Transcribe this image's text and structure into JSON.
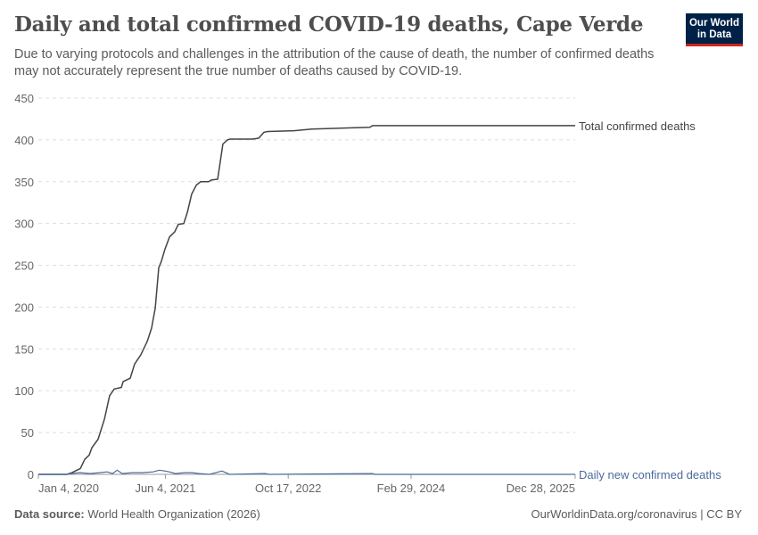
{
  "header": {
    "title": "Daily and total confirmed COVID-19 deaths, Cape Verde",
    "subtitle": "Due to varying protocols and challenges in the attribution of the cause of death, the number of confirmed deaths may not accurately represent the true number of deaths caused by COVID-19.",
    "logo": "Our World in Data",
    "logo_line1": "Our World",
    "logo_line2": "in Data"
  },
  "footer": {
    "source_label": "Data source:",
    "source": "World Health Organization (2026)",
    "link": "OurWorldinData.org/coronavirus | CC BY"
  },
  "chart_data": {
    "type": "line",
    "title": "Daily and total confirmed COVID-19 deaths, Cape Verde",
    "xlim": [
      "2020-01-04",
      "2025-12-28"
    ],
    "ylim": [
      0,
      450
    ],
    "yticks": [
      0,
      50,
      100,
      150,
      200,
      250,
      300,
      350,
      400,
      450
    ],
    "xticks": [
      {
        "date": "2020-01-04",
        "label": "Jan 4, 2020"
      },
      {
        "date": "2021-06-04",
        "label": "Jun 4, 2021"
      },
      {
        "date": "2022-10-17",
        "label": "Oct 17, 2022"
      },
      {
        "date": "2024-02-29",
        "label": "Feb 29, 2024"
      },
      {
        "date": "2025-12-28",
        "label": "Dec 28, 2025"
      }
    ],
    "grid": true,
    "series": [
      {
        "name": "Total confirmed deaths",
        "color": "#444444",
        "points": [
          [
            "2020-01-04",
            0
          ],
          [
            "2020-04-29",
            0
          ],
          [
            "2020-05-20",
            2
          ],
          [
            "2020-06-23",
            7
          ],
          [
            "2020-07-11",
            18
          ],
          [
            "2020-07-29",
            23
          ],
          [
            "2020-08-09",
            32
          ],
          [
            "2020-09-03",
            42
          ],
          [
            "2020-09-29",
            66
          ],
          [
            "2020-10-20",
            94
          ],
          [
            "2020-11-08",
            102
          ],
          [
            "2020-12-07",
            104
          ],
          [
            "2020-12-14",
            111
          ],
          [
            "2021-01-12",
            115
          ],
          [
            "2021-01-30",
            132
          ],
          [
            "2021-02-24",
            143
          ],
          [
            "2021-03-22",
            159
          ],
          [
            "2021-04-09",
            175
          ],
          [
            "2021-04-24",
            199
          ],
          [
            "2021-05-08",
            247
          ],
          [
            "2021-05-19",
            255
          ],
          [
            "2021-06-02",
            269
          ],
          [
            "2021-06-21",
            284
          ],
          [
            "2021-07-12",
            290
          ],
          [
            "2021-07-27",
            299
          ],
          [
            "2021-08-18",
            300
          ],
          [
            "2021-09-01",
            313
          ],
          [
            "2021-09-19",
            335
          ],
          [
            "2021-10-08",
            346
          ],
          [
            "2021-10-26",
            350
          ],
          [
            "2021-11-27",
            350
          ],
          [
            "2021-12-08",
            352
          ],
          [
            "2022-01-03",
            353
          ],
          [
            "2022-01-24",
            395
          ],
          [
            "2022-02-12",
            400
          ],
          [
            "2022-02-22",
            401
          ],
          [
            "2022-05-24",
            401
          ],
          [
            "2022-06-19",
            402
          ],
          [
            "2022-07-10",
            409
          ],
          [
            "2022-07-25",
            410
          ],
          [
            "2022-11-10",
            411
          ],
          [
            "2023-01-21",
            413
          ],
          [
            "2023-09-14",
            415
          ],
          [
            "2023-09-25",
            417
          ],
          [
            "2025-12-28",
            417
          ]
        ]
      },
      {
        "name": "Daily new confirmed deaths",
        "color": "#4c6a9c",
        "points": [
          [
            "2020-01-04",
            0
          ],
          [
            "2020-04-29",
            0
          ],
          [
            "2020-05-15",
            1
          ],
          [
            "2020-06-20",
            2
          ],
          [
            "2020-08-01",
            1
          ],
          [
            "2020-09-10",
            2
          ],
          [
            "2020-10-10",
            3
          ],
          [
            "2020-11-01",
            1
          ],
          [
            "2020-11-20",
            5
          ],
          [
            "2020-12-10",
            1
          ],
          [
            "2021-01-20",
            2
          ],
          [
            "2021-03-01",
            2
          ],
          [
            "2021-04-15",
            3
          ],
          [
            "2021-05-10",
            5
          ],
          [
            "2021-06-01",
            4
          ],
          [
            "2021-06-20",
            3
          ],
          [
            "2021-07-15",
            1
          ],
          [
            "2021-08-20",
            2
          ],
          [
            "2021-09-20",
            2
          ],
          [
            "2021-10-20",
            1
          ],
          [
            "2021-12-01",
            0
          ],
          [
            "2022-01-20",
            4
          ],
          [
            "2022-02-05",
            2
          ],
          [
            "2022-02-20",
            0
          ],
          [
            "2022-07-15",
            1
          ],
          [
            "2022-08-01",
            0
          ],
          [
            "2023-09-25",
            1
          ],
          [
            "2023-10-05",
            0
          ],
          [
            "2025-12-28",
            0
          ]
        ]
      }
    ]
  }
}
